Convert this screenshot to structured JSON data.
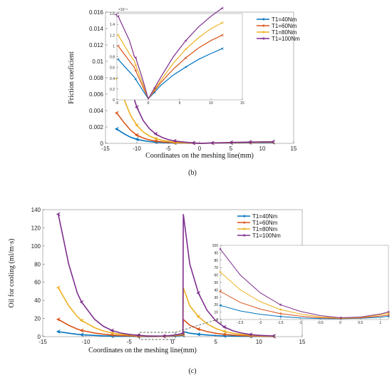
{
  "colors": {
    "T1=40Nm": "#0072BD",
    "T1=60Nm": "#D95319",
    "T1=80Nm": "#EDB120",
    "T1=100Nm": "#7E2F8E"
  },
  "chart_data": [
    {
      "id": "b",
      "type": "line",
      "caption": "(b)",
      "xlabel": "Coordinates on the meshing line(mm)",
      "ylabel": "Friction coeficient",
      "xlim": [
        -15,
        15
      ],
      "ylim": [
        0,
        0.016
      ],
      "xticks": [
        -15,
        -10,
        -5,
        0,
        5,
        10,
        15
      ],
      "yticks": [
        0,
        0.002,
        0.004,
        0.006,
        0.008,
        0.01,
        0.012,
        0.014,
        0.016
      ],
      "legend": "top-right",
      "series": [
        {
          "name": "T1=40Nm",
          "x": [
            -13.2,
            -12,
            -11,
            -10,
            -9,
            -8,
            -7,
            -6,
            -5,
            -4,
            -3,
            -2,
            -1,
            0,
            1,
            2,
            3,
            4,
            5,
            6,
            7,
            8,
            9,
            10,
            11.7
          ],
          "y": [
            0.00175,
            0.00115,
            0.00075,
            0.0005,
            0.00033,
            0.00022,
            0.00015,
            0.0001,
            7e-05,
            5e-05,
            4e-05,
            3e-05,
            2e-05,
            1e-05,
            2e-05,
            3e-05,
            4e-05,
            5e-05,
            6e-05,
            7e-05,
            8e-05,
            8e-05,
            9e-05,
            9e-05,
            0.0001
          ]
        },
        {
          "name": "T1=60Nm",
          "x": [
            -13.2,
            -12,
            -11,
            -10,
            -9,
            -8,
            -7,
            -6,
            -5,
            -4,
            -3,
            -2,
            -1,
            0,
            1,
            2,
            3,
            4,
            5,
            6,
            7,
            8,
            9,
            10,
            11.7
          ],
          "y": [
            0.0037,
            0.0025,
            0.0016,
            0.001,
            0.00065,
            0.00042,
            0.00028,
            0.00018,
            0.00012,
            8e-05,
            6e-05,
            4e-05,
            3e-05,
            1e-05,
            2e-05,
            4e-05,
            5e-05,
            7e-05,
            8e-05,
            9e-05,
            0.0001,
            0.00011,
            0.00012,
            0.00013,
            0.00014
          ]
        },
        {
          "name": "T1=80Nm",
          "x": [
            -13.2,
            -12,
            -11,
            -10,
            -9,
            -8,
            -7,
            -6,
            -5,
            -4,
            -3,
            -2,
            -1,
            0,
            1,
            2,
            3,
            4,
            5,
            6,
            7,
            8,
            9,
            10,
            11.7
          ],
          "y": [
            0.0079,
            0.0053,
            0.0034,
            0.0022,
            0.0014,
            0.0009,
            0.00058,
            0.00037,
            0.00024,
            0.00015,
            0.0001,
            7e-05,
            4e-05,
            1e-05,
            2e-05,
            4e-05,
            6e-05,
            8e-05,
            0.0001,
            0.00011,
            0.00012,
            0.00014,
            0.00015,
            0.00016,
            0.00017
          ]
        },
        {
          "name": "T1=100Nm",
          "x": [
            -13.2,
            -12,
            -11,
            -10,
            -9,
            -8,
            -7,
            -6,
            -5,
            -4,
            -3,
            -2,
            -1,
            0,
            1,
            2,
            3,
            4,
            5,
            6,
            7,
            8,
            9,
            10,
            11.7
          ],
          "y": [
            0.0157,
            0.0105,
            0.0068,
            0.0044,
            0.0028,
            0.0018,
            0.00115,
            0.00073,
            0.00046,
            0.0003,
            0.00019,
            0.00012,
            6e-05,
            1e-05,
            3e-05,
            5e-05,
            7e-05,
            9e-05,
            0.00011,
            0.00013,
            0.00014,
            0.00016,
            0.00017,
            0.00018,
            0.00019
          ]
        }
      ],
      "inset": {
        "multiplier": "×10⁻⁴",
        "xlim": [
          -5,
          15
        ],
        "ylim": [
          0,
          1.6
        ],
        "xticks": [
          -5,
          0,
          5,
          10,
          15
        ],
        "yticks": [
          0,
          0.2,
          0.4,
          0.6,
          0.8,
          1,
          1.2,
          1.4,
          1.6
        ],
        "ytick_labels": [
          "0",
          "0.2",
          "0.4",
          "0.6",
          "0.8",
          "1",
          "1.2",
          "1.4",
          "1.6"
        ],
        "series": [
          {
            "name": "T1=40Nm",
            "x": [
              -4.8,
              -3,
              -2.2,
              -2,
              -1,
              0,
              1,
              2,
              4,
              6,
              8,
              10,
              11.8
            ],
            "y": [
              0.75,
              0.52,
              0.42,
              0.38,
              0.2,
              0.02,
              0.14,
              0.27,
              0.46,
              0.61,
              0.75,
              0.86,
              0.95
            ]
          },
          {
            "name": "T1=60Nm",
            "x": [
              -4.8,
              -3,
              -2.2,
              -2,
              -1,
              0,
              1,
              2,
              4,
              6,
              8,
              10,
              11.8
            ],
            "y": [
              1.0,
              0.72,
              0.6,
              0.54,
              0.28,
              0.02,
              0.17,
              0.32,
              0.57,
              0.78,
              0.96,
              1.1,
              1.2
            ]
          },
          {
            "name": "T1=80Nm",
            "x": [
              -4.8,
              -3,
              -2.2,
              -2,
              -1,
              0,
              1,
              2,
              4,
              6,
              8,
              10,
              11.8
            ],
            "y": [
              1.2,
              0.85,
              0.72,
              0.64,
              0.34,
              0.02,
              0.19,
              0.36,
              0.68,
              0.94,
              1.15,
              1.32,
              1.43
            ]
          },
          {
            "name": "T1=100Nm",
            "x": [
              -4.8,
              -3,
              -2.2,
              -2,
              -1,
              0,
              1,
              2,
              4,
              6,
              8,
              10,
              11.8
            ],
            "y": [
              1.55,
              1.1,
              0.8,
              0.78,
              0.42,
              0.02,
              0.22,
              0.42,
              0.8,
              1.1,
              1.35,
              1.55,
              1.7
            ]
          }
        ]
      }
    },
    {
      "id": "c",
      "type": "line",
      "caption": "(c)",
      "xlabel": "Coordinates on the meshing line(mm)",
      "ylabel": "Oil for cooling (ml/m·s)",
      "xlim": [
        -15,
        15
      ],
      "ylim": [
        0,
        140
      ],
      "xticks": [
        -15,
        -10,
        -5,
        0,
        5,
        10,
        15
      ],
      "yticks": [
        0,
        20,
        40,
        60,
        80,
        100,
        120,
        140
      ],
      "legend": "top-right",
      "series": [
        {
          "name": "T1=40Nm",
          "x": [
            -13.2,
            -12,
            -11,
            -10.5,
            -9,
            -8,
            -7,
            -6,
            -5,
            -4,
            -3,
            -2,
            -1,
            0,
            1,
            1.2,
            1.25,
            2,
            3,
            4,
            5,
            6,
            7,
            8,
            9,
            10,
            11.7
          ],
          "y": [
            5.5,
            3.8,
            2.6,
            2.1,
            1.3,
            0.9,
            0.6,
            0.4,
            0.3,
            0.2,
            0.1,
            0.1,
            0.2,
            0.5,
            1.2,
            1.5,
            5.5,
            3.8,
            2.6,
            1.8,
            1.2,
            0.8,
            0.6,
            0.4,
            0.3,
            0.2,
            0.1
          ]
        },
        {
          "name": "T1=60Nm",
          "x": [
            -13.2,
            -12,
            -11,
            -10.5,
            -9,
            -8,
            -7,
            -6,
            -5,
            -4,
            -3,
            -2,
            -1,
            0,
            1,
            1.2,
            1.25,
            2,
            3,
            4,
            5,
            6,
            7,
            8,
            9,
            10,
            11.7
          ],
          "y": [
            19,
            12.5,
            8.3,
            6.8,
            4,
            2.7,
            1.8,
            1.2,
            0.8,
            0.5,
            0.3,
            0.2,
            0.3,
            0.8,
            1.8,
            2.2,
            19,
            12.5,
            8.3,
            5.6,
            3.7,
            2.5,
            1.7,
            1.1,
            0.8,
            0.5,
            0.3
          ]
        },
        {
          "name": "T1=80Nm",
          "x": [
            -13.2,
            -12,
            -11,
            -10.5,
            -9,
            -8,
            -7,
            -6,
            -5,
            -4,
            -3,
            -2,
            -1,
            0,
            1,
            1.2,
            1.25,
            2,
            3,
            4,
            5,
            6,
            7,
            8,
            9,
            10,
            11.7
          ],
          "y": [
            54,
            34,
            22,
            17.8,
            9.8,
            6.3,
            4,
            2.6,
            1.7,
            1.1,
            0.7,
            0.4,
            0.5,
            1.1,
            2.4,
            2.9,
            54,
            34,
            22,
            14.1,
            9,
            5.8,
            3.7,
            2.4,
            1.5,
            1,
            0.5
          ]
        },
        {
          "name": "T1=100Nm",
          "x": [
            -13.2,
            -12,
            -11,
            -10.5,
            -9,
            -8,
            -7,
            -6,
            -5,
            -4,
            -3,
            -2,
            -1,
            0,
            1,
            1.2,
            1.25,
            2,
            3,
            4,
            5,
            6,
            7,
            8,
            9,
            10,
            11.7
          ],
          "y": [
            135,
            80,
            48,
            38,
            19,
            11.5,
            6.8,
            4,
            2.4,
            1.5,
            0.9,
            0.6,
            0.7,
            1.4,
            3.1,
            3.7,
            135,
            80,
            48,
            29,
            17.5,
            10.6,
            6.4,
            3.9,
            2.3,
            1.4,
            0.8
          ]
        }
      ],
      "inset": {
        "xlim": [
          -3,
          1.2
        ],
        "ylim": [
          0,
          100
        ],
        "xticks": [
          -3,
          -2.5,
          -2,
          -1.5,
          -1,
          -0.5,
          0,
          0.5,
          1
        ],
        "yticks": [
          0,
          10,
          20,
          30,
          40,
          50,
          60,
          70,
          80,
          90,
          100
        ],
        "series": [
          {
            "name": "T1=40Nm",
            "x": [
              -3,
              -2.5,
              -2,
              -1.5,
              -1,
              -0.5,
              0,
              0.5,
              1,
              1.2
            ],
            "y": [
              19,
              11.5,
              7,
              4,
              2.2,
              1.2,
              1.1,
              1.6,
              3.2,
              4.3
            ]
          },
          {
            "name": "T1=60Nm",
            "x": [
              -3,
              -2.5,
              -2,
              -1.5,
              -1,
              -0.5,
              0,
              0.5,
              1,
              1.2
            ],
            "y": [
              38,
              23,
              14,
              8,
              4.5,
              2.3,
              1.4,
              2.2,
              4.6,
              6.2
            ]
          },
          {
            "name": "T1=80Nm",
            "x": [
              -3,
              -2.5,
              -2,
              -1.5,
              -1,
              -0.5,
              0,
              0.5,
              1,
              1.2
            ],
            "y": [
              64,
              40,
              24,
              13.5,
              7.5,
              3.7,
              1.8,
              2.8,
              6.3,
              8.6
            ]
          },
          {
            "name": "T1=100Nm",
            "x": [
              -3,
              -2.5,
              -2,
              -1.5,
              -1,
              -0.5,
              0,
              0.5,
              1,
              1.2
            ],
            "y": [
              95,
              60,
              36,
              20,
              11,
              5.3,
              2.4,
              3.4,
              7.5,
              10.2
            ]
          }
        ]
      }
    }
  ]
}
